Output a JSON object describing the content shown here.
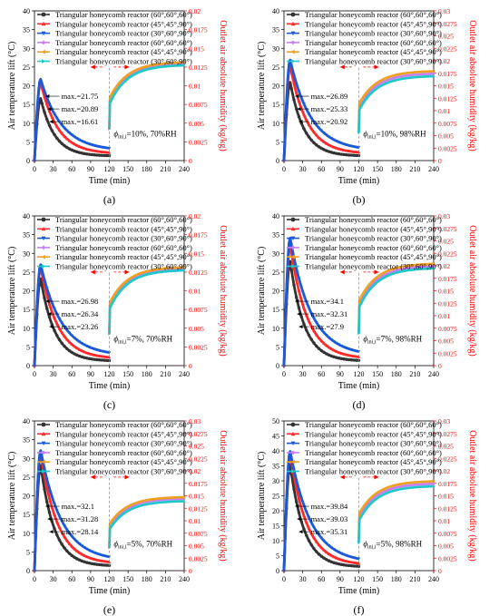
{
  "legend_entries": [
    {
      "label": "Triangular honeycomb reactor (60°,60°,60°)",
      "color": "#333333",
      "marker": "circle"
    },
    {
      "label": "Triangular honeycomb reactor (45°,45°,90°)",
      "color": "#ff2a2a",
      "marker": "triangle-up"
    },
    {
      "label": "Triangular honeycomb reactor (30°,60°,90°)",
      "color": "#1a5ad8",
      "marker": "triangle-down"
    },
    {
      "label": "Triangular honeycomb reactor (60°,60°,60°)",
      "color": "#c77ff0",
      "marker": "diamond"
    },
    {
      "label": "Triangular honeycomb reactor (45°,45°,90°)",
      "color": "#f0a020",
      "marker": "triangle-left"
    },
    {
      "label": "Triangular honeycomb reactor (30°,60°,90°)",
      "color": "#1fc8c8",
      "marker": "triangle-right"
    }
  ],
  "axis_text": {
    "xlabel": "Time (min)",
    "ylabel": "Air temperature lift (°C)",
    "y2label": "Outlet air absolute humidity (kg/kg)"
  },
  "chart_data": [
    {
      "panel": "(a)",
      "type": "line",
      "ylim": [
        0,
        40
      ],
      "y2lim": [
        0,
        0.02
      ],
      "maxima": [
        21.75,
        20.89,
        16.61
      ],
      "max_labels": [
        "max.=21.75",
        "max.=20.89",
        "max.=16.61"
      ],
      "condition": {
        "prefix": "ϕ",
        "sub": "ini,i",
        "text": "=10%, 70%RH"
      },
      "humidity_end": [
        0.013,
        0.0132,
        0.0128
      ]
    },
    {
      "panel": "(b)",
      "type": "line",
      "ylim": [
        0,
        40
      ],
      "y2lim": [
        0,
        0.03
      ],
      "maxima": [
        26.89,
        25.33,
        20.92
      ],
      "max_labels": [
        "max.=26.89",
        "max.=25.33",
        "max.=20.92"
      ],
      "condition": {
        "prefix": "ϕ",
        "sub": "ini,i",
        "text": "=10%, 98%RH"
      },
      "humidity_end": [
        0.0175,
        0.018,
        0.017
      ]
    },
    {
      "panel": "(c)",
      "type": "line",
      "ylim": [
        0,
        40
      ],
      "y2lim": [
        0,
        0.02
      ],
      "maxima": [
        26.98,
        26.34,
        23.26
      ],
      "max_labels": [
        "max.=26.98",
        "max.=26.34",
        "max.=23.26"
      ],
      "condition": {
        "prefix": "ϕ",
        "sub": "ini,i",
        "text": "=7%, 70%RH"
      },
      "humidity_end": [
        0.013,
        0.0132,
        0.0128
      ]
    },
    {
      "panel": "(d)",
      "type": "line",
      "ylim": [
        0,
        40
      ],
      "y2lim": [
        0,
        0.03
      ],
      "maxima": [
        34.1,
        32.31,
        27.9
      ],
      "max_labels": [
        "max.=34.1",
        "max.=32.31",
        "max.=27.9"
      ],
      "condition": {
        "prefix": "ϕ",
        "sub": "ini,i",
        "text": "=7%, 98%RH"
      },
      "humidity_end": [
        0.02,
        0.0205,
        0.0196
      ]
    },
    {
      "panel": "(e)",
      "type": "line",
      "ylim": [
        0,
        40
      ],
      "y2lim": [
        0,
        0.03
      ],
      "maxima": [
        32.1,
        31.28,
        28.14
      ],
      "max_labels": [
        "max.=32.1",
        "max.=31.28",
        "max.=28.14"
      ],
      "condition": {
        "prefix": "ϕ",
        "sub": "ini,i",
        "text": "=5%, 70%RH"
      },
      "humidity_end": [
        0.0145,
        0.0148,
        0.014
      ]
    },
    {
      "panel": "(f)",
      "type": "line",
      "ylim": [
        0,
        50
      ],
      "y2lim": [
        0,
        0.03
      ],
      "maxima": [
        39.84,
        39.03,
        35.31
      ],
      "max_labels": [
        "max.=39.84",
        "max.=39.03",
        "max.=35.31"
      ],
      "condition": {
        "prefix": "ϕ",
        "sub": "ini,i",
        "text": "=5%, 98%RH"
      },
      "humidity_end": [
        0.0175,
        0.018,
        0.017
      ]
    }
  ]
}
